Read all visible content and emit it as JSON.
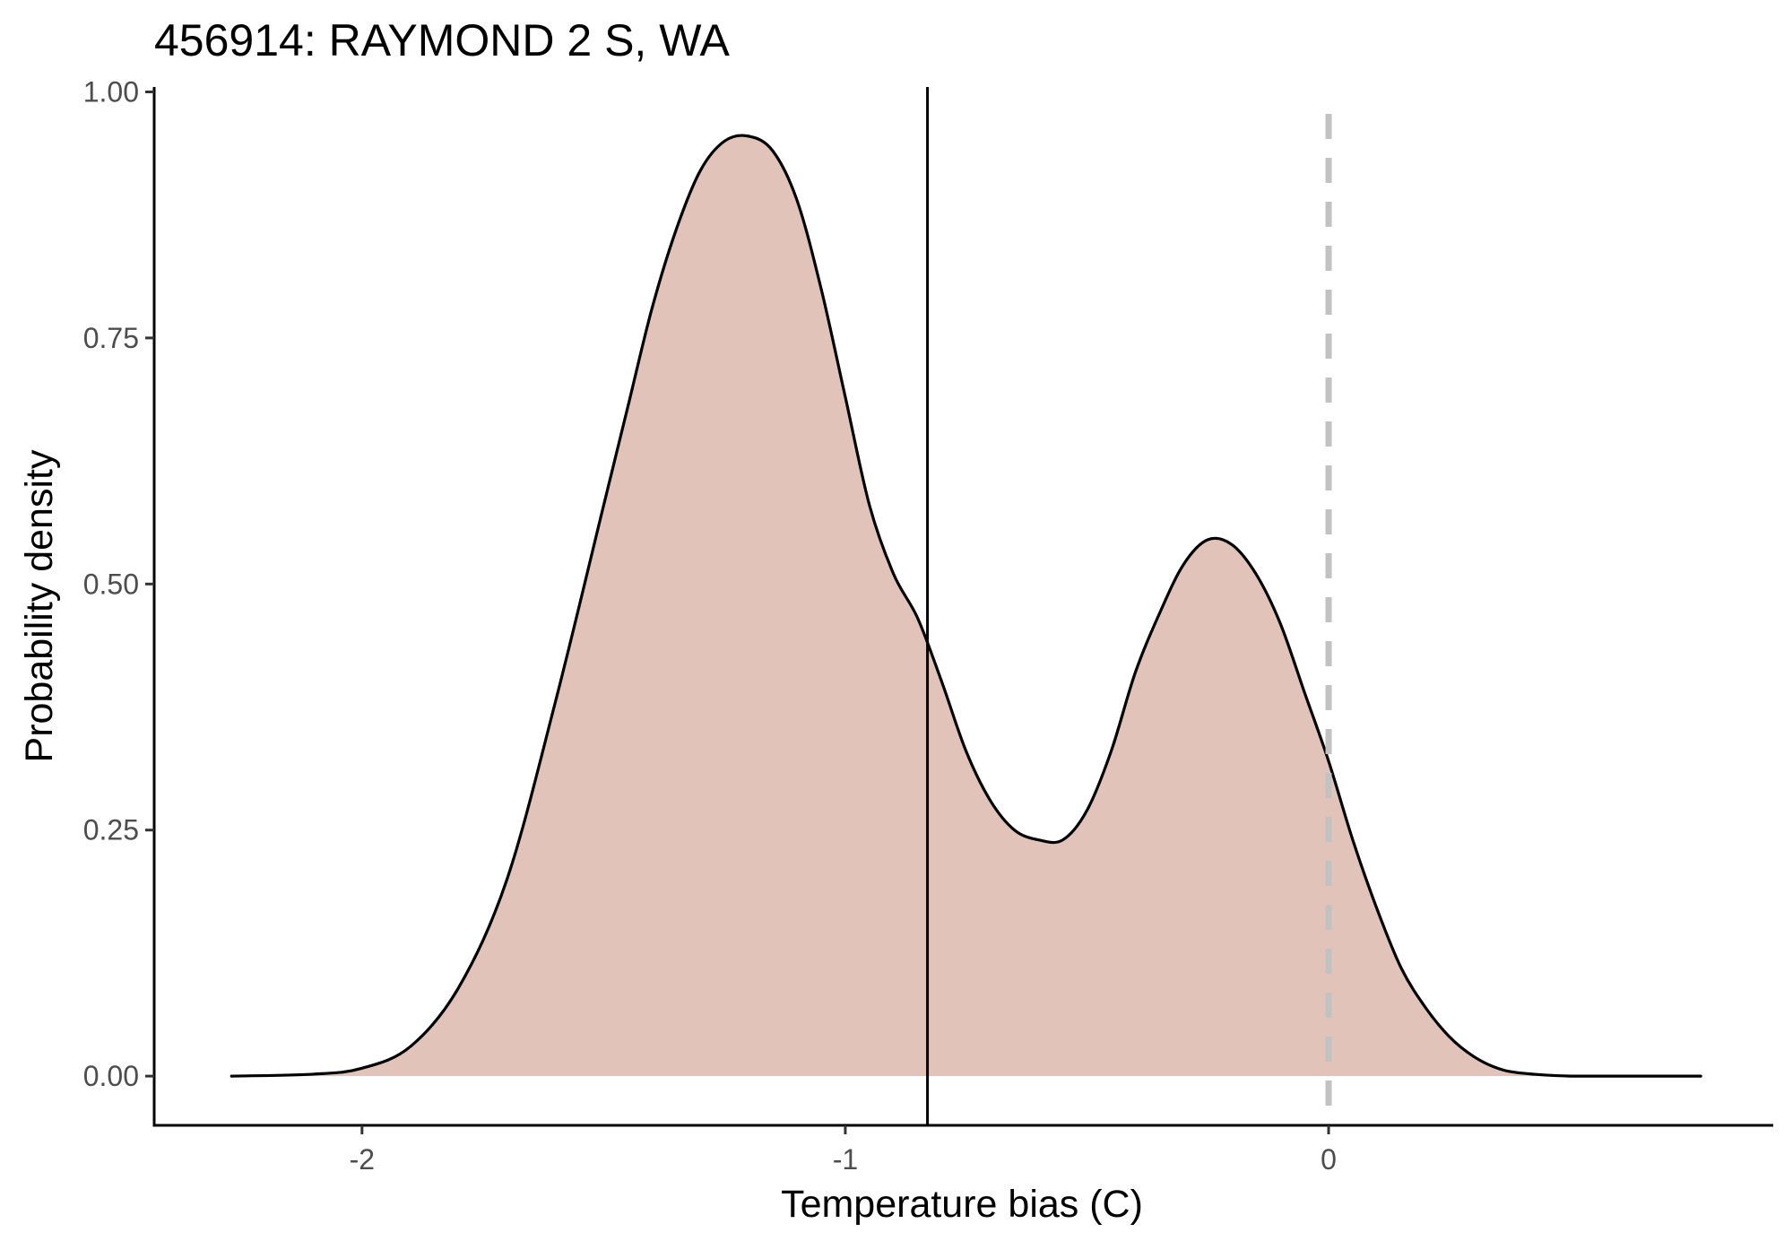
{
  "chart_data": {
    "type": "area",
    "title": "456914: RAYMOND 2 S, WA",
    "xlabel": "Temperature bias (C)",
    "ylabel": "Probability density",
    "xlim": [
      -2.43,
      0.92
    ],
    "ylim": [
      -0.05,
      1.005
    ],
    "x_ticks": [
      {
        "value": -2,
        "label": "-2"
      },
      {
        "value": -1,
        "label": "-1"
      },
      {
        "value": 0,
        "label": "0"
      }
    ],
    "y_ticks": [
      {
        "value": 0.0,
        "label": "0.00"
      },
      {
        "value": 0.25,
        "label": "0.25"
      },
      {
        "value": 0.5,
        "label": "0.50"
      },
      {
        "value": 0.75,
        "label": "0.75"
      },
      {
        "value": 1.0,
        "label": "1.00"
      }
    ],
    "grid": false,
    "legend": "none",
    "series": [
      {
        "x": [
          -2.27,
          -2.1,
          -2.0,
          -1.9,
          -1.8,
          -1.7,
          -1.6,
          -1.5,
          -1.45,
          -1.4,
          -1.35,
          -1.3,
          -1.25,
          -1.2,
          -1.15,
          -1.1,
          -1.05,
          -1.0,
          -0.95,
          -0.9,
          -0.85,
          -0.8,
          -0.75,
          -0.7,
          -0.65,
          -0.6,
          -0.55,
          -0.5,
          -0.45,
          -0.4,
          -0.35,
          -0.3,
          -0.25,
          -0.2,
          -0.15,
          -0.1,
          -0.05,
          0.0,
          0.05,
          0.1,
          0.15,
          0.2,
          0.25,
          0.3,
          0.35,
          0.4,
          0.5,
          0.6,
          0.77
        ],
        "y": [
          0.0,
          0.002,
          0.008,
          0.03,
          0.09,
          0.2,
          0.38,
          0.58,
          0.68,
          0.78,
          0.86,
          0.92,
          0.95,
          0.955,
          0.94,
          0.89,
          0.8,
          0.69,
          0.58,
          0.51,
          0.465,
          0.4,
          0.33,
          0.28,
          0.25,
          0.24,
          0.24,
          0.27,
          0.33,
          0.41,
          0.47,
          0.52,
          0.545,
          0.54,
          0.51,
          0.46,
          0.39,
          0.32,
          0.24,
          0.17,
          0.11,
          0.07,
          0.04,
          0.02,
          0.008,
          0.003,
          0.0,
          0.0,
          0.0
        ]
      }
    ],
    "reference_lines": [
      {
        "axis": "x",
        "value": -0.83,
        "style": "solid",
        "color": "#000000"
      },
      {
        "axis": "x",
        "value": 0,
        "style": "dashed",
        "color": "#c2c2c2"
      }
    ],
    "colors": {
      "fill": "#e2c3b9",
      "line": "#000000",
      "axis": "#000000",
      "tick_label": "#4d4d4d",
      "zero_line": "#c2c2c2"
    }
  }
}
